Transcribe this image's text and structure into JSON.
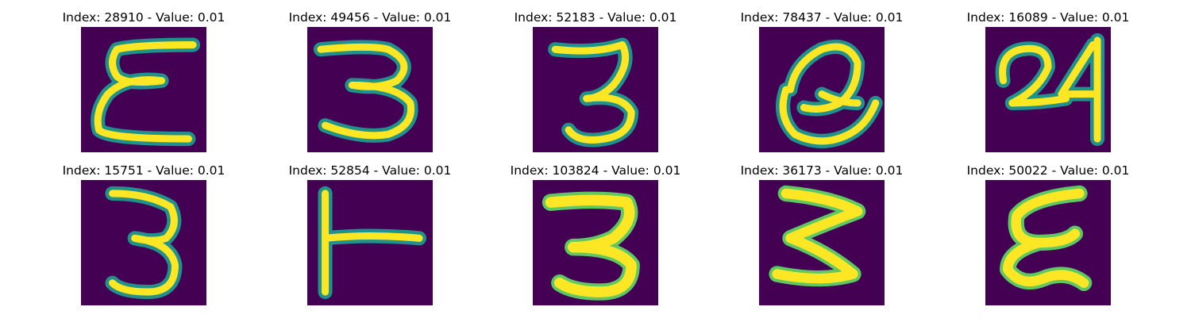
{
  "colormap": {
    "background": "#440154",
    "mid_blue": "#31688e",
    "teal": "#21918c",
    "green": "#5ec962",
    "yellow": "#fde725"
  },
  "panels": [
    {
      "title": "Index: 28910 - Value: 0.01",
      "glyph": "E"
    },
    {
      "title": "Index: 49456 - Value: 0.01",
      "glyph": "3"
    },
    {
      "title": "Index: 52183 - Value: 0.01",
      "glyph": "3"
    },
    {
      "title": "Index: 78437 - Value: 0.01",
      "glyph": "Q"
    },
    {
      "title": "Index: 16089 - Value: 0.01",
      "glyph": "24"
    },
    {
      "title": "Index: 15751 - Value: 0.01",
      "glyph": "3"
    },
    {
      "title": "Index: 52854 - Value: 0.01",
      "glyph": "T"
    },
    {
      "title": "Index: 103824 - Value: 0.01",
      "glyph": "3"
    },
    {
      "title": "Index: 36173 - Value: 0.01",
      "glyph": "3"
    },
    {
      "title": "Index: 50022 - Value: 0.01",
      "glyph": "E"
    }
  ]
}
